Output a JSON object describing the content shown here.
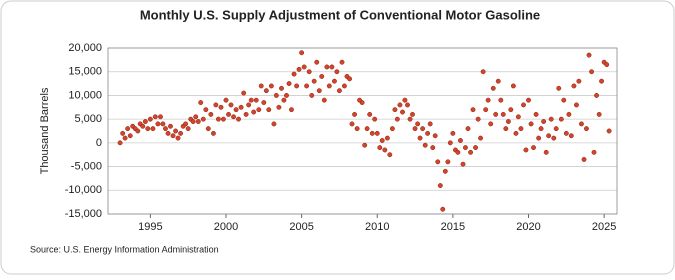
{
  "chart_data": {
    "type": "scatter",
    "title": "Monthly U.S. Supply Adjustment of Conventional Motor Gasoline",
    "y_label": "Thousand Barrels",
    "source": "Source: U.S. Energy Information Administration",
    "color": "#d2452b",
    "grid": true,
    "xlim": [
      1992.2,
      2025.85
    ],
    "ylim": [
      -15000,
      20000
    ],
    "xticks": [
      1995,
      2000,
      2005,
      2010,
      2015,
      2020,
      2025
    ],
    "yticks": [
      {
        "value": -15000,
        "label": "-15,000"
      },
      {
        "value": -10000,
        "label": "-10,000"
      },
      {
        "value": -5000,
        "label": "-5,000"
      },
      0,
      {
        "value": 5000,
        "label": "5,000"
      },
      {
        "value": 10000,
        "label": "10,000"
      },
      {
        "value": 15000,
        "label": "15,000"
      },
      {
        "value": 20000,
        "label": "20,000"
      }
    ],
    "x": [
      1993.0,
      1993.17,
      1993.33,
      1993.5,
      1993.67,
      1993.83,
      1994.0,
      1994.17,
      1994.33,
      1994.5,
      1994.67,
      1994.83,
      1995.0,
      1995.17,
      1995.33,
      1995.5,
      1995.67,
      1995.83,
      1996.0,
      1996.17,
      1996.33,
      1996.5,
      1996.67,
      1996.83,
      1997.0,
      1997.17,
      1997.33,
      1997.5,
      1997.67,
      1997.83,
      1998.0,
      1998.17,
      1998.33,
      1998.5,
      1998.67,
      1998.83,
      1999.0,
      1999.17,
      1999.33,
      1999.5,
      1999.67,
      1999.83,
      2000.0,
      2000.17,
      2000.33,
      2000.5,
      2000.67,
      2000.83,
      2001.0,
      2001.17,
      2001.33,
      2001.5,
      2001.67,
      2001.83,
      2002.0,
      2002.17,
      2002.33,
      2002.5,
      2002.67,
      2002.83,
      2003.0,
      2003.17,
      2003.33,
      2003.5,
      2003.67,
      2003.83,
      2004.0,
      2004.17,
      2004.33,
      2004.5,
      2004.67,
      2004.83,
      2005.0,
      2005.17,
      2005.33,
      2005.5,
      2005.67,
      2005.83,
      2006.0,
      2006.17,
      2006.33,
      2006.5,
      2006.67,
      2006.83,
      2007.0,
      2007.17,
      2007.33,
      2007.5,
      2007.67,
      2007.83,
      2008.0,
      2008.17,
      2008.33,
      2008.5,
      2008.67,
      2008.83,
      2009.0,
      2009.17,
      2009.33,
      2009.5,
      2009.67,
      2009.83,
      2010.0,
      2010.17,
      2010.33,
      2010.5,
      2010.67,
      2010.83,
      2011.0,
      2011.17,
      2011.33,
      2011.5,
      2011.67,
      2011.83,
      2012.0,
      2012.17,
      2012.33,
      2012.5,
      2012.67,
      2012.83,
      2013.0,
      2013.17,
      2013.33,
      2013.5,
      2013.67,
      2013.83,
      2014.0,
      2014.17,
      2014.33,
      2014.5,
      2014.67,
      2014.83,
      2015.0,
      2015.17,
      2015.33,
      2015.5,
      2015.67,
      2015.83,
      2016.0,
      2016.17,
      2016.33,
      2016.5,
      2016.67,
      2016.83,
      2017.0,
      2017.17,
      2017.33,
      2017.5,
      2017.67,
      2017.83,
      2018.0,
      2018.17,
      2018.33,
      2018.5,
      2018.67,
      2018.83,
      2019.0,
      2019.17,
      2019.33,
      2019.5,
      2019.67,
      2019.83,
      2020.0,
      2020.17,
      2020.33,
      2020.5,
      2020.67,
      2020.83,
      2021.0,
      2021.17,
      2021.33,
      2021.5,
      2021.67,
      2021.83,
      2022.0,
      2022.17,
      2022.33,
      2022.5,
      2022.67,
      2022.83,
      2023.0,
      2023.17,
      2023.33,
      2023.5,
      2023.67,
      2023.83,
      2024.0,
      2024.17,
      2024.33,
      2024.5,
      2024.67,
      2024.83,
      2025.0,
      2025.17,
      2025.33
    ],
    "values": [
      0,
      2000,
      1000,
      3000,
      1500,
      3500,
      3000,
      2500,
      4000,
      3500,
      4500,
      3000,
      5000,
      3000,
      5500,
      4000,
      5500,
      4000,
      3000,
      2000,
      3500,
      1500,
      2500,
      1000,
      2000,
      3500,
      4000,
      3000,
      5000,
      4500,
      5500,
      4500,
      8500,
      5000,
      7000,
      3000,
      6000,
      2000,
      8000,
      5000,
      7500,
      5000,
      9000,
      6000,
      8000,
      5500,
      7000,
      5000,
      7500,
      10500,
      6000,
      8000,
      9000,
      6500,
      9000,
      7000,
      12000,
      8500,
      11000,
      7000,
      12000,
      4000,
      10000,
      7500,
      11500,
      9000,
      10000,
      12500,
      7000,
      14500,
      12000,
      15500,
      19000,
      16000,
      12000,
      15000,
      10000,
      13000,
      17000,
      11000,
      14000,
      9000,
      16000,
      12000,
      16000,
      13000,
      15000,
      11000,
      17000,
      12000,
      14000,
      13500,
      4000,
      6000,
      3000,
      9000,
      8500,
      -500,
      3000,
      6000,
      2000,
      5000,
      2000,
      -1000,
      500,
      -1500,
      1000,
      -2500,
      3000,
      7000,
      5000,
      8000,
      6500,
      9000,
      8000,
      5000,
      6000,
      3000,
      4000,
      1000,
      3000,
      -500,
      2000,
      4000,
      -1000,
      1500,
      -4000,
      -9000,
      -14000,
      -6000,
      -4000,
      0,
      2000,
      -1500,
      -2000,
      500,
      -4500,
      -1000,
      3000,
      -2000,
      7000,
      -1000,
      5000,
      1000,
      15000,
      7000,
      9000,
      4000,
      11500,
      6000,
      13000,
      9000,
      6000,
      3000,
      4500,
      7000,
      12000,
      2000,
      5500,
      3000,
      8000,
      -1500,
      9000,
      4000,
      -1000,
      6000,
      1000,
      3000,
      4500,
      -2000,
      1500,
      5000,
      1000,
      3000,
      11500,
      5000,
      9000,
      2000,
      6000,
      1500,
      12000,
      8000,
      13000,
      4000,
      -3500,
      3000,
      18500,
      15000,
      -2000,
      10000,
      6000,
      13000,
      17000,
      16500,
      2500
    ]
  }
}
